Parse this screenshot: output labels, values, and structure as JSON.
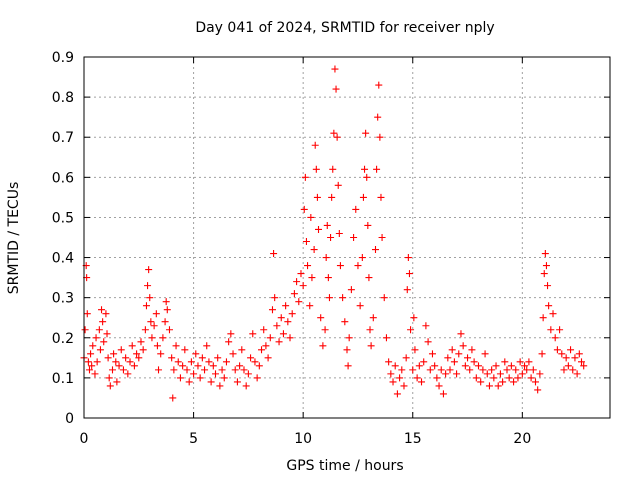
{
  "chart_data": {
    "type": "scatter",
    "title": "Day 041 of 2024, SRMTID for receiver nply",
    "xlabel": "GPS time / hours",
    "ylabel": "SRMTID / TECUs",
    "xlim": [
      0,
      24
    ],
    "ylim": [
      0,
      0.9
    ],
    "xticks": [
      0,
      5,
      10,
      15,
      20
    ],
    "xtick_labels": [
      "0",
      "5",
      "10",
      "15",
      "20"
    ],
    "yticks": [
      0,
      0.1,
      0.2,
      0.3,
      0.4,
      0.5,
      0.6,
      0.7,
      0.8,
      0.9
    ],
    "ytick_labels": [
      "0",
      "0.1",
      "0.2",
      "0.3",
      "0.4",
      "0.5",
      "0.6",
      "0.7",
      "0.8",
      "0.9"
    ],
    "grid": true,
    "marker": "+",
    "color": "#ff0000",
    "series": [
      {
        "name": "SRMTID",
        "points": [
          [
            0.0,
            0.15
          ],
          [
            0.05,
            0.22
          ],
          [
            0.1,
            0.38
          ],
          [
            0.12,
            0.35
          ],
          [
            0.15,
            0.26
          ],
          [
            0.2,
            0.14
          ],
          [
            0.25,
            0.12
          ],
          [
            0.3,
            0.16
          ],
          [
            0.35,
            0.13
          ],
          [
            0.4,
            0.18
          ],
          [
            0.5,
            0.11
          ],
          [
            0.55,
            0.2
          ],
          [
            0.6,
            0.14
          ],
          [
            0.7,
            0.22
          ],
          [
            0.75,
            0.17
          ],
          [
            0.8,
            0.27
          ],
          [
            0.85,
            0.24
          ],
          [
            0.9,
            0.19
          ],
          [
            1.0,
            0.26
          ],
          [
            1.05,
            0.21
          ],
          [
            1.1,
            0.15
          ],
          [
            1.15,
            0.1
          ],
          [
            1.2,
            0.08
          ],
          [
            1.3,
            0.12
          ],
          [
            1.35,
            0.16
          ],
          [
            1.45,
            0.14
          ],
          [
            1.5,
            0.09
          ],
          [
            1.6,
            0.13
          ],
          [
            1.7,
            0.17
          ],
          [
            1.8,
            0.12
          ],
          [
            1.9,
            0.15
          ],
          [
            2.0,
            0.11
          ],
          [
            2.1,
            0.14
          ],
          [
            2.2,
            0.18
          ],
          [
            2.3,
            0.13
          ],
          [
            2.4,
            0.16
          ],
          [
            2.5,
            0.15
          ],
          [
            2.6,
            0.19
          ],
          [
            2.7,
            0.17
          ],
          [
            2.8,
            0.22
          ],
          [
            2.85,
            0.28
          ],
          [
            2.9,
            0.33
          ],
          [
            2.95,
            0.37
          ],
          [
            3.0,
            0.3
          ],
          [
            3.05,
            0.24
          ],
          [
            3.1,
            0.2
          ],
          [
            3.2,
            0.23
          ],
          [
            3.3,
            0.26
          ],
          [
            3.35,
            0.18
          ],
          [
            3.4,
            0.12
          ],
          [
            3.5,
            0.16
          ],
          [
            3.6,
            0.2
          ],
          [
            3.7,
            0.24
          ],
          [
            3.75,
            0.29
          ],
          [
            3.8,
            0.27
          ],
          [
            3.9,
            0.22
          ],
          [
            4.0,
            0.15
          ],
          [
            4.05,
            0.05
          ],
          [
            4.1,
            0.12
          ],
          [
            4.2,
            0.18
          ],
          [
            4.3,
            0.14
          ],
          [
            4.4,
            0.1
          ],
          [
            4.5,
            0.13
          ],
          [
            4.6,
            0.17
          ],
          [
            4.7,
            0.12
          ],
          [
            4.8,
            0.09
          ],
          [
            4.9,
            0.14
          ],
          [
            5.0,
            0.11
          ],
          [
            5.1,
            0.16
          ],
          [
            5.2,
            0.13
          ],
          [
            5.3,
            0.1
          ],
          [
            5.4,
            0.15
          ],
          [
            5.5,
            0.12
          ],
          [
            5.6,
            0.18
          ],
          [
            5.7,
            0.14
          ],
          [
            5.8,
            0.09
          ],
          [
            5.9,
            0.13
          ],
          [
            6.0,
            0.11
          ],
          [
            6.1,
            0.15
          ],
          [
            6.2,
            0.08
          ],
          [
            6.3,
            0.12
          ],
          [
            6.4,
            0.1
          ],
          [
            6.5,
            0.14
          ],
          [
            6.6,
            0.19
          ],
          [
            6.7,
            0.21
          ],
          [
            6.8,
            0.16
          ],
          [
            6.9,
            0.12
          ],
          [
            7.0,
            0.09
          ],
          [
            7.1,
            0.13
          ],
          [
            7.2,
            0.17
          ],
          [
            7.3,
            0.12
          ],
          [
            7.4,
            0.08
          ],
          [
            7.5,
            0.11
          ],
          [
            7.6,
            0.15
          ],
          [
            7.7,
            0.21
          ],
          [
            7.8,
            0.14
          ],
          [
            7.9,
            0.1
          ],
          [
            8.0,
            0.13
          ],
          [
            8.1,
            0.17
          ],
          [
            8.2,
            0.22
          ],
          [
            8.3,
            0.18
          ],
          [
            8.4,
            0.15
          ],
          [
            8.5,
            0.2
          ],
          [
            8.6,
            0.27
          ],
          [
            8.65,
            0.41
          ],
          [
            8.7,
            0.3
          ],
          [
            8.8,
            0.23
          ],
          [
            8.9,
            0.19
          ],
          [
            9.0,
            0.25
          ],
          [
            9.1,
            0.21
          ],
          [
            9.2,
            0.28
          ],
          [
            9.3,
            0.24
          ],
          [
            9.4,
            0.2
          ],
          [
            9.5,
            0.26
          ],
          [
            9.6,
            0.31
          ],
          [
            9.7,
            0.34
          ],
          [
            9.8,
            0.29
          ],
          [
            9.9,
            0.36
          ],
          [
            10.0,
            0.33
          ],
          [
            10.05,
            0.52
          ],
          [
            10.1,
            0.6
          ],
          [
            10.15,
            0.44
          ],
          [
            10.2,
            0.38
          ],
          [
            10.3,
            0.28
          ],
          [
            10.35,
            0.5
          ],
          [
            10.4,
            0.35
          ],
          [
            10.5,
            0.42
          ],
          [
            10.55,
            0.68
          ],
          [
            10.6,
            0.62
          ],
          [
            10.65,
            0.55
          ],
          [
            10.7,
            0.47
          ],
          [
            10.8,
            0.25
          ],
          [
            10.9,
            0.18
          ],
          [
            11.0,
            0.22
          ],
          [
            11.05,
            0.4
          ],
          [
            11.1,
            0.48
          ],
          [
            11.15,
            0.35
          ],
          [
            11.2,
            0.3
          ],
          [
            11.25,
            0.45
          ],
          [
            11.3,
            0.55
          ],
          [
            11.35,
            0.62
          ],
          [
            11.4,
            0.71
          ],
          [
            11.45,
            0.87
          ],
          [
            11.5,
            0.82
          ],
          [
            11.55,
            0.7
          ],
          [
            11.6,
            0.58
          ],
          [
            11.65,
            0.46
          ],
          [
            11.7,
            0.38
          ],
          [
            11.8,
            0.3
          ],
          [
            11.9,
            0.24
          ],
          [
            12.0,
            0.17
          ],
          [
            12.05,
            0.13
          ],
          [
            12.1,
            0.2
          ],
          [
            12.2,
            0.32
          ],
          [
            12.3,
            0.45
          ],
          [
            12.4,
            0.52
          ],
          [
            12.5,
            0.38
          ],
          [
            12.6,
            0.28
          ],
          [
            12.7,
            0.4
          ],
          [
            12.75,
            0.55
          ],
          [
            12.8,
            0.62
          ],
          [
            12.85,
            0.71
          ],
          [
            12.9,
            0.6
          ],
          [
            12.95,
            0.48
          ],
          [
            13.0,
            0.35
          ],
          [
            13.05,
            0.22
          ],
          [
            13.1,
            0.18
          ],
          [
            13.2,
            0.25
          ],
          [
            13.3,
            0.42
          ],
          [
            13.35,
            0.62
          ],
          [
            13.4,
            0.75
          ],
          [
            13.45,
            0.83
          ],
          [
            13.5,
            0.7
          ],
          [
            13.55,
            0.55
          ],
          [
            13.6,
            0.45
          ],
          [
            13.7,
            0.3
          ],
          [
            13.8,
            0.2
          ],
          [
            13.9,
            0.14
          ],
          [
            14.0,
            0.11
          ],
          [
            14.1,
            0.09
          ],
          [
            14.2,
            0.13
          ],
          [
            14.3,
            0.06
          ],
          [
            14.4,
            0.1
          ],
          [
            14.5,
            0.12
          ],
          [
            14.6,
            0.08
          ],
          [
            14.7,
            0.15
          ],
          [
            14.75,
            0.32
          ],
          [
            14.8,
            0.4
          ],
          [
            14.85,
            0.36
          ],
          [
            14.9,
            0.22
          ],
          [
            15.0,
            0.12
          ],
          [
            15.05,
            0.25
          ],
          [
            15.1,
            0.17
          ],
          [
            15.2,
            0.1
          ],
          [
            15.3,
            0.13
          ],
          [
            15.4,
            0.09
          ],
          [
            15.5,
            0.14
          ],
          [
            15.6,
            0.23
          ],
          [
            15.7,
            0.19
          ],
          [
            15.8,
            0.12
          ],
          [
            15.9,
            0.16
          ],
          [
            16.0,
            0.13
          ],
          [
            16.1,
            0.1
          ],
          [
            16.2,
            0.08
          ],
          [
            16.3,
            0.12
          ],
          [
            16.4,
            0.06
          ],
          [
            16.5,
            0.11
          ],
          [
            16.6,
            0.15
          ],
          [
            16.7,
            0.12
          ],
          [
            16.8,
            0.17
          ],
          [
            16.9,
            0.14
          ],
          [
            17.0,
            0.11
          ],
          [
            17.1,
            0.16
          ],
          [
            17.2,
            0.21
          ],
          [
            17.3,
            0.18
          ],
          [
            17.4,
            0.13
          ],
          [
            17.5,
            0.15
          ],
          [
            17.6,
            0.12
          ],
          [
            17.7,
            0.17
          ],
          [
            17.8,
            0.14
          ],
          [
            17.9,
            0.1
          ],
          [
            18.0,
            0.13
          ],
          [
            18.1,
            0.09
          ],
          [
            18.2,
            0.12
          ],
          [
            18.3,
            0.16
          ],
          [
            18.4,
            0.11
          ],
          [
            18.5,
            0.08
          ],
          [
            18.6,
            0.12
          ],
          [
            18.7,
            0.1
          ],
          [
            18.8,
            0.13
          ],
          [
            18.9,
            0.08
          ],
          [
            19.0,
            0.11
          ],
          [
            19.1,
            0.09
          ],
          [
            19.2,
            0.14
          ],
          [
            19.3,
            0.12
          ],
          [
            19.4,
            0.1
          ],
          [
            19.5,
            0.13
          ],
          [
            19.6,
            0.09
          ],
          [
            19.7,
            0.12
          ],
          [
            19.8,
            0.1
          ],
          [
            19.9,
            0.14
          ],
          [
            20.0,
            0.11
          ],
          [
            20.1,
            0.13
          ],
          [
            20.2,
            0.12
          ],
          [
            20.3,
            0.14
          ],
          [
            20.4,
            0.1
          ],
          [
            20.5,
            0.12
          ],
          [
            20.6,
            0.09
          ],
          [
            20.7,
            0.07
          ],
          [
            20.8,
            0.11
          ],
          [
            20.9,
            0.16
          ],
          [
            20.95,
            0.25
          ],
          [
            21.0,
            0.36
          ],
          [
            21.05,
            0.41
          ],
          [
            21.1,
            0.38
          ],
          [
            21.15,
            0.33
          ],
          [
            21.2,
            0.28
          ],
          [
            21.3,
            0.22
          ],
          [
            21.4,
            0.26
          ],
          [
            21.5,
            0.2
          ],
          [
            21.6,
            0.17
          ],
          [
            21.7,
            0.22
          ],
          [
            21.8,
            0.16
          ],
          [
            21.9,
            0.12
          ],
          [
            22.0,
            0.15
          ],
          [
            22.1,
            0.13
          ],
          [
            22.2,
            0.17
          ],
          [
            22.3,
            0.12
          ],
          [
            22.4,
            0.15
          ],
          [
            22.5,
            0.11
          ],
          [
            22.6,
            0.16
          ],
          [
            22.7,
            0.14
          ],
          [
            22.8,
            0.13
          ]
        ]
      }
    ]
  }
}
